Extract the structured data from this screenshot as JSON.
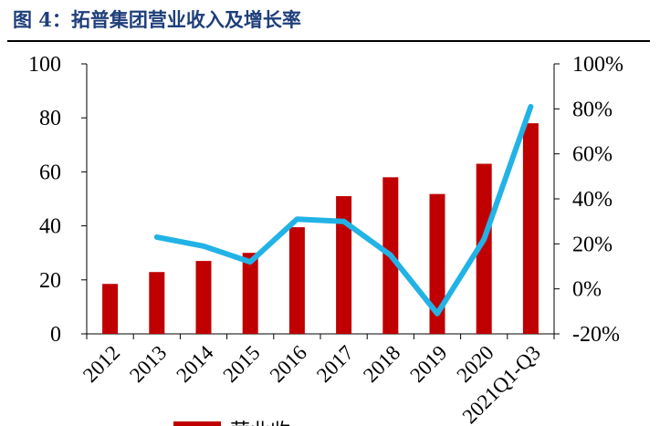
{
  "title": "图 4：拓普集团营业收入及增长率",
  "chart_data": {
    "type": "bar",
    "categories": [
      "2012",
      "2013",
      "2014",
      "2015",
      "2016",
      "2017",
      "2018",
      "2019",
      "2020",
      "2021Q1-Q3"
    ],
    "series": [
      {
        "name": "营业收",
        "type": "bar",
        "axis": "left",
        "color": "#c00000",
        "values": [
          18.5,
          22.9,
          27.0,
          30.0,
          39.5,
          51.0,
          58.0,
          51.8,
          63.0,
          78.0
        ]
      },
      {
        "type": "line",
        "axis": "right",
        "color": "#22b3e6",
        "values": [
          null,
          23,
          19,
          12,
          31,
          30,
          15,
          -11,
          22,
          81
        ]
      }
    ],
    "y_left": {
      "ylim": [
        0,
        100
      ],
      "ticks": [
        "0",
        "20",
        "40",
        "60",
        "80",
        "100"
      ]
    },
    "y_right": {
      "ylim": [
        -20,
        100
      ],
      "ticks": [
        "-20%",
        "0%",
        "20%",
        "40%",
        "60%",
        "80%",
        "100%"
      ]
    },
    "grid": false,
    "legend_position": "bottom"
  }
}
